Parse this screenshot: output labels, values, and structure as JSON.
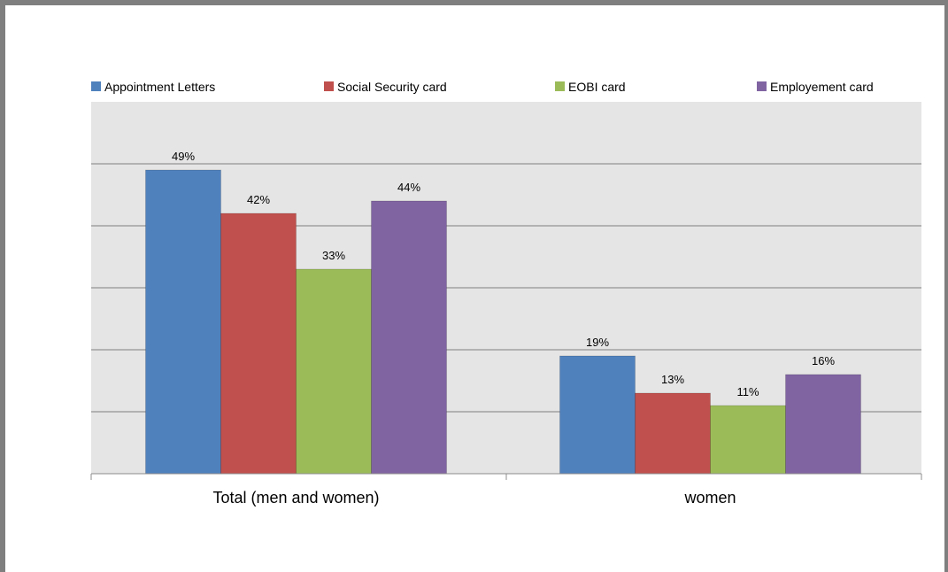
{
  "chart_data": {
    "type": "bar",
    "title": "",
    "xlabel": "",
    "ylabel": "",
    "categories": [
      "Total (men and women)",
      "women"
    ],
    "series": [
      {
        "name": "Appointment Letters",
        "color": "#4f81bd",
        "values": [
          49,
          19
        ],
        "labels": [
          "49%",
          "19%"
        ]
      },
      {
        "name": "Social Security card",
        "color": "#c0504d",
        "values": [
          42,
          13
        ],
        "labels": [
          "42%",
          "13%"
        ]
      },
      {
        "name": "EOBI card",
        "color": "#9bbb59",
        "values": [
          33,
          11
        ],
        "labels": [
          "33%",
          "11%"
        ]
      },
      {
        "name": "Employement card",
        "color": "#8064a2",
        "values": [
          44,
          16
        ],
        "labels": [
          "44%",
          "16%"
        ]
      }
    ],
    "ylim": [
      0,
      60
    ],
    "grid": true,
    "legend_position": "top",
    "plot_background": "#e5e5e5",
    "gridline_color": "#808080"
  }
}
